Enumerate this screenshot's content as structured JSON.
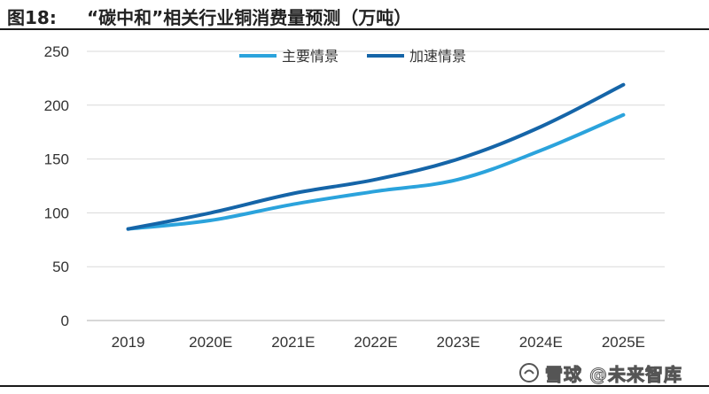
{
  "figure": {
    "number": "图18:",
    "title": "“碳中和”相关行业铜消费量预测（万吨）"
  },
  "watermark": {
    "text": "雪球 @未来智库",
    "icon": "snowball-logo-icon"
  },
  "colors": {
    "series_main": "#2ba3dc",
    "series_accelerated": "#1565a8",
    "grid": "#d9d9d9",
    "axis": "#bfbfbf"
  },
  "chart_data": {
    "type": "line",
    "title": "“碳中和”相关行业铜消费量预测（万吨）",
    "categories": [
      "2019",
      "2020E",
      "2021E",
      "2022E",
      "2023E",
      "2024E",
      "2025E"
    ],
    "series": [
      {
        "name": "主要情景",
        "values": [
          85,
          93,
          108,
          120,
          131,
          158,
          191
        ]
      },
      {
        "name": "加速情景",
        "values": [
          85,
          100,
          118,
          131,
          150,
          180,
          219
        ]
      }
    ],
    "ylim": [
      0,
      250
    ],
    "yticks": [
      0,
      50,
      100,
      150,
      200,
      250
    ],
    "xlabel": "",
    "ylabel": "",
    "grid": true,
    "legend_position": "top-center",
    "smooth": true
  }
}
